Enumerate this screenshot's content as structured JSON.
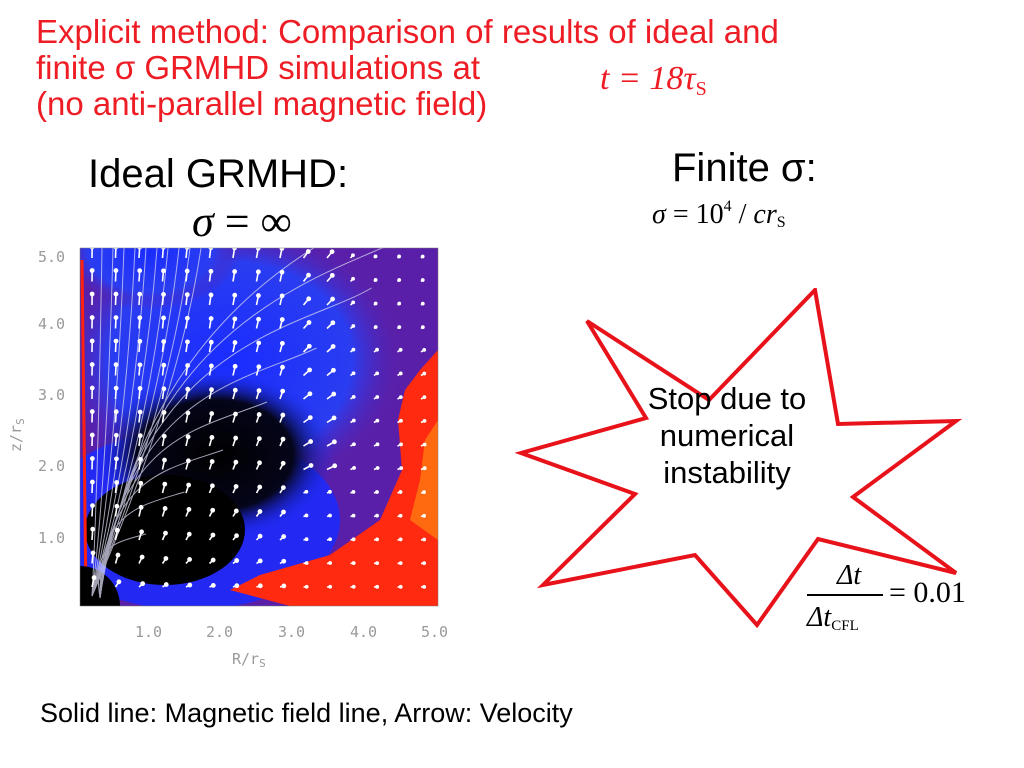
{
  "title": {
    "line1": "Explicit method: Comparison of results of ideal and",
    "line2": "finite σ GRMHD simulations at",
    "line3": "(no anti-parallel magnetic field)",
    "time_expr": "t = 18τ",
    "time_sub": "S"
  },
  "left_panel": {
    "heading": "Ideal GRMHD:",
    "sigma_symbol": "σ",
    "sigma_value": " = ∞",
    "plot": {
      "y_ticks": [
        "5.0",
        "4.0",
        "3.0",
        "2.0",
        "1.0"
      ],
      "x_ticks": [
        "1.0",
        "2.0",
        "3.0",
        "4.0",
        "5.0"
      ],
      "y_label": "z/r",
      "y_label_sub": "S",
      "x_label": "R/r",
      "x_label_sub": "S"
    }
  },
  "right_panel": {
    "heading": "Finite σ:",
    "sigma_expr_a": "σ",
    "sigma_expr_b": " = 10",
    "sigma_exp": "4",
    "sigma_expr_c": " / ",
    "sigma_expr_d": "cr",
    "sigma_sub": "S",
    "star_text_line1": "Stop due to",
    "star_text_line2": "numerical",
    "star_text_line3": "instability",
    "ratio_num": "Δt",
    "ratio_den": "Δt",
    "ratio_den_sub": "CFL",
    "ratio_rhs": "= 0.01"
  },
  "caption": "Solid line: Magnetic field line, Arrow: Velocity",
  "colors": {
    "title": "#ee1c25",
    "star_outline": "#e8121a",
    "plot_background": "#5a1fa8"
  }
}
